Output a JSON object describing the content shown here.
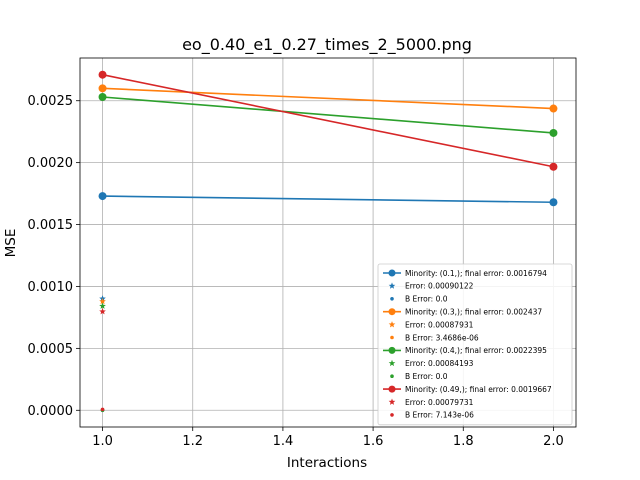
{
  "chart_data": {
    "type": "line",
    "title": "eo_0.40_e1_0.27_times_2_5000.png",
    "xlabel": "Interactions",
    "ylabel": "MSE",
    "xlim": [
      0.95,
      2.05
    ],
    "ylim": [
      -0.000135,
      0.002845
    ],
    "xticks": [
      1.0,
      1.2,
      1.4,
      1.6,
      1.8,
      2.0
    ],
    "xtick_labels": [
      "1.0",
      "1.2",
      "1.4",
      "1.6",
      "1.8",
      "2.0"
    ],
    "yticks": [
      0.0,
      0.0005,
      0.001,
      0.0015,
      0.002,
      0.0025
    ],
    "ytick_labels": [
      "0.0000",
      "0.0005",
      "0.0010",
      "0.0015",
      "0.0020",
      "0.0025"
    ],
    "grid": true,
    "legend_position": "lower-right",
    "series": [
      {
        "name": "Minority: (0.1,); final error: 0.0016794",
        "color": "#1f77b4",
        "x": [
          1.0,
          2.0
        ],
        "y": [
          0.00173,
          0.00168
        ],
        "error_label": "Error: 0.00090122",
        "error_point": [
          1.0,
          0.00090122
        ],
        "b_error_label": "B Error: 0.0",
        "b_error_point": [
          1.0,
          0.0
        ]
      },
      {
        "name": "Minority: (0.3,); final error: 0.002437",
        "color": "#ff7f0e",
        "x": [
          1.0,
          2.0
        ],
        "y": [
          0.0026,
          0.002437
        ],
        "error_label": "Error: 0.00087931",
        "error_point": [
          1.0,
          0.00087931
        ],
        "b_error_label": "B Error: 3.4686e-06",
        "b_error_point": [
          1.0,
          3.4686e-06
        ]
      },
      {
        "name": "Minority: (0.4,); final error: 0.0022395",
        "color": "#2ca02c",
        "x": [
          1.0,
          2.0
        ],
        "y": [
          0.00253,
          0.0022395
        ],
        "error_label": "Error: 0.00084193",
        "error_point": [
          1.0,
          0.00084193
        ],
        "b_error_label": "B Error: 0.0",
        "b_error_point": [
          1.0,
          0.0
        ]
      },
      {
        "name": "Minority: (0.49,); final error: 0.0019667",
        "color": "#d62728",
        "x": [
          1.0,
          2.0
        ],
        "y": [
          0.00271,
          0.0019667
        ],
        "error_label": "Error: 0.00079731",
        "error_point": [
          1.0,
          0.00079731
        ],
        "b_error_label": "B Error: 7.143e-06",
        "b_error_point": [
          1.0,
          7.143e-06
        ]
      }
    ]
  }
}
